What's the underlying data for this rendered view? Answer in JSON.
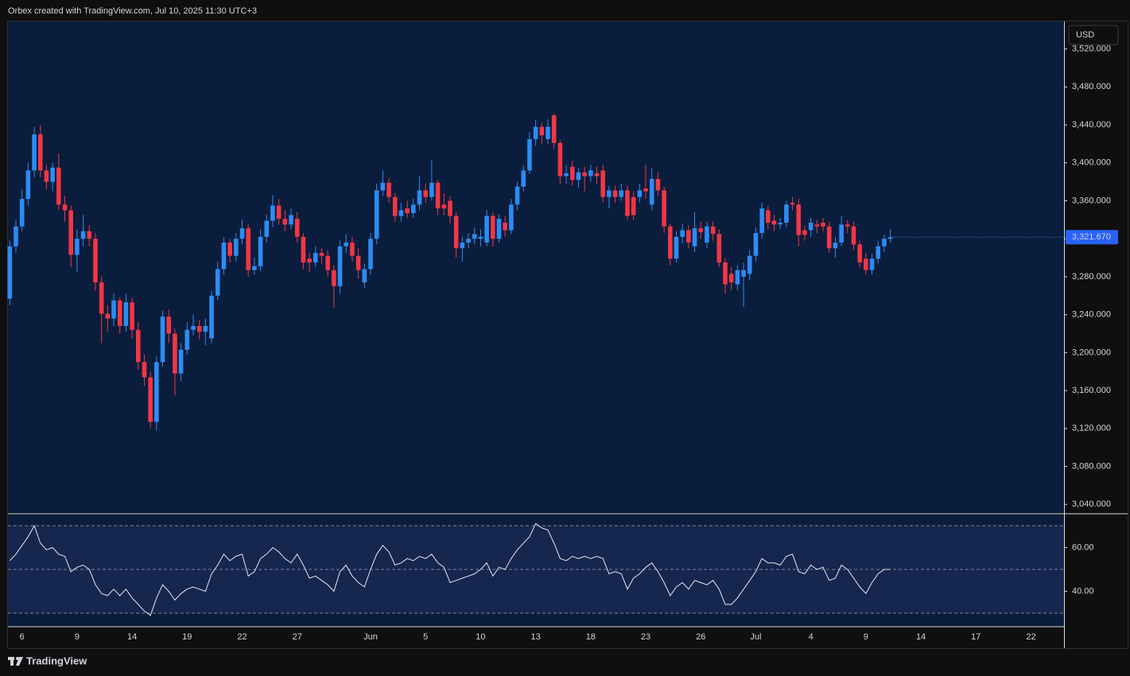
{
  "header": "Orbex created with TradingView.com, Jul 10, 2025 11:30 UTC+3",
  "currency": "USD",
  "footer": "TradingView",
  "chart_data": [
    {
      "type": "candlestick",
      "up_color": "#2c8cf4",
      "down_color": "#f23645",
      "open": [
        3257,
        3312,
        3333,
        3362,
        3392,
        3430,
        3392,
        3380,
        3395,
        3356,
        3350,
        3303,
        3320,
        3328,
        3320,
        3274,
        3241,
        3236,
        3255,
        3228,
        3253,
        3224,
        3190,
        3174,
        3127,
        3190,
        3238,
        3220,
        3178,
        3203,
        3224,
        3228,
        3222,
        3215,
        3260,
        3288,
        3316,
        3302,
        3320,
        3331,
        3287,
        3291,
        3322,
        3339,
        3355,
        3341,
        3335,
        3341,
        3322,
        3299,
        3295,
        3305,
        3302,
        3287,
        3270,
        3312,
        3316,
        3302,
        3274,
        3288,
        3320,
        3371,
        3379,
        3364,
        3344,
        3352,
        3347,
        3356,
        3371,
        3364,
        3379,
        3356,
        3360,
        3344,
        3310,
        3316,
        3320,
        3320,
        3316,
        3344,
        3320,
        3337,
        3329,
        3356,
        3375,
        3392,
        3425,
        3438,
        3425,
        3450,
        3421,
        3386,
        3396,
        3382,
        3390,
        3386,
        3389,
        3392,
        3364,
        3371,
        3364,
        3371,
        3364,
        3364,
        3373,
        3356,
        3383,
        3371,
        3333,
        3299,
        3322,
        3329,
        3312,
        3331,
        3316,
        3333,
        3325,
        3295,
        3283,
        3272,
        3280,
        3283,
        3302,
        3326,
        3350,
        3339,
        3335,
        3337,
        3358,
        3356,
        3329,
        3329,
        3335,
        3337,
        3333,
        3310,
        3316,
        3335,
        3333,
        3314,
        3299,
        3287,
        3299,
        3312,
        3320
      ],
      "high": [
        3318,
        3340,
        3372,
        3400,
        3438,
        3440,
        3398,
        3400,
        3410,
        3365,
        3355,
        3330,
        3345,
        3334,
        3326,
        3280,
        3250,
        3262,
        3258,
        3262,
        3258,
        3232,
        3198,
        3180,
        3196,
        3244,
        3245,
        3225,
        3210,
        3232,
        3240,
        3234,
        3236,
        3265,
        3296,
        3322,
        3320,
        3326,
        3340,
        3335,
        3300,
        3330,
        3345,
        3366,
        3362,
        3350,
        3352,
        3348,
        3326,
        3305,
        3312,
        3310,
        3308,
        3292,
        3318,
        3325,
        3322,
        3310,
        3294,
        3326,
        3378,
        3392,
        3384,
        3368,
        3358,
        3360,
        3362,
        3386,
        3378,
        3403,
        3382,
        3368,
        3365,
        3348,
        3322,
        3326,
        3332,
        3330,
        3350,
        3348,
        3346,
        3344,
        3362,
        3380,
        3398,
        3432,
        3445,
        3442,
        3446,
        3452,
        3424,
        3398,
        3402,
        3395,
        3396,
        3398,
        3396,
        3398,
        3376,
        3376,
        3378,
        3376,
        3370,
        3378,
        3398,
        3394,
        3390,
        3375,
        3336,
        3328,
        3336,
        3334,
        3348,
        3338,
        3338,
        3338,
        3330,
        3300,
        3290,
        3292,
        3295,
        3308,
        3332,
        3358,
        3355,
        3345,
        3342,
        3360,
        3364,
        3362,
        3334,
        3342,
        3340,
        3342,
        3338,
        3322,
        3344,
        3340,
        3338,
        3318,
        3305,
        3304,
        3318,
        3324,
        3330
      ],
      "low": [
        3250,
        3305,
        3328,
        3355,
        3385,
        3385,
        3372,
        3370,
        3350,
        3338,
        3290,
        3285,
        3312,
        3312,
        3265,
        3210,
        3222,
        3228,
        3220,
        3222,
        3215,
        3182,
        3165,
        3120,
        3118,
        3185,
        3210,
        3155,
        3170,
        3198,
        3218,
        3214,
        3208,
        3210,
        3255,
        3282,
        3295,
        3296,
        3314,
        3280,
        3282,
        3286,
        3316,
        3332,
        3335,
        3328,
        3330,
        3316,
        3288,
        3285,
        3290,
        3294,
        3280,
        3247,
        3262,
        3305,
        3296,
        3278,
        3268,
        3282,
        3314,
        3365,
        3358,
        3338,
        3338,
        3342,
        3342,
        3350,
        3358,
        3360,
        3345,
        3345,
        3336,
        3300,
        3296,
        3310,
        3314,
        3312,
        3312,
        3312,
        3316,
        3322,
        3325,
        3350,
        3370,
        3388,
        3418,
        3420,
        3420,
        3415,
        3378,
        3378,
        3376,
        3374,
        3370,
        3380,
        3378,
        3358,
        3352,
        3358,
        3360,
        3340,
        3340,
        3358,
        3362,
        3350,
        3365,
        3326,
        3292,
        3295,
        3315,
        3310,
        3306,
        3320,
        3310,
        3318,
        3290,
        3262,
        3266,
        3266,
        3248,
        3276,
        3296,
        3320,
        3330,
        3328,
        3330,
        3332,
        3350,
        3312,
        3318,
        3322,
        3326,
        3328,
        3305,
        3300,
        3312,
        3326,
        3308,
        3290,
        3282,
        3282,
        3294,
        3306,
        3316
      ],
      "close": [
        3312,
        3333,
        3362,
        3392,
        3430,
        3392,
        3380,
        3395,
        3356,
        3350,
        3303,
        3320,
        3328,
        3320,
        3274,
        3241,
        3236,
        3255,
        3228,
        3253,
        3224,
        3190,
        3174,
        3127,
        3190,
        3238,
        3220,
        3178,
        3203,
        3224,
        3228,
        3222,
        3228,
        3260,
        3288,
        3316,
        3302,
        3320,
        3331,
        3287,
        3291,
        3322,
        3339,
        3355,
        3341,
        3335,
        3345,
        3322,
        3295,
        3295,
        3305,
        3302,
        3287,
        3270,
        3312,
        3316,
        3302,
        3287,
        3288,
        3320,
        3371,
        3379,
        3364,
        3344,
        3350,
        3347,
        3356,
        3371,
        3364,
        3379,
        3352,
        3352,
        3344,
        3310,
        3316,
        3320,
        3325,
        3322,
        3344,
        3320,
        3341,
        3329,
        3356,
        3375,
        3392,
        3425,
        3438,
        3429,
        3438,
        3421,
        3386,
        3389,
        3382,
        3390,
        3386,
        3392,
        3386,
        3364,
        3371,
        3364,
        3371,
        3344,
        3345,
        3371,
        3370,
        3383,
        3371,
        3333,
        3299,
        3322,
        3329,
        3316,
        3331,
        3327,
        3333,
        3325,
        3295,
        3272,
        3274,
        3287,
        3287,
        3302,
        3326,
        3352,
        3337,
        3335,
        3337,
        3356,
        3356,
        3324,
        3324,
        3337,
        3333,
        3333,
        3310,
        3316,
        3335,
        3333,
        3314,
        3295,
        3287,
        3299,
        3312,
        3320,
        3321.67
      ],
      "last_price": {
        "value": 3321.67,
        "label": "3,321.670"
      },
      "xlim": [
        -0.3,
        172.4
      ],
      "xticks": [
        {
          "value": 2,
          "label": "6"
        },
        {
          "value": 11,
          "label": "9"
        },
        {
          "value": 20,
          "label": "14"
        },
        {
          "value": 29,
          "label": "19"
        },
        {
          "value": 38,
          "label": "22"
        },
        {
          "value": 47,
          "label": "27"
        },
        {
          "value": 59,
          "label": "Jun"
        },
        {
          "value": 68,
          "label": "5"
        },
        {
          "value": 77,
          "label": "10"
        },
        {
          "value": 86,
          "label": "13"
        },
        {
          "value": 95,
          "label": "18"
        },
        {
          "value": 104,
          "label": "23"
        },
        {
          "value": 113,
          "label": "26"
        },
        {
          "value": 122,
          "label": "Jul"
        },
        {
          "value": 131,
          "label": "4"
        },
        {
          "value": 140,
          "label": "9"
        },
        {
          "value": 149,
          "label": "14"
        },
        {
          "value": 158,
          "label": "17"
        },
        {
          "value": 167,
          "label": "22"
        }
      ],
      "ylim": [
        3031,
        3549
      ],
      "yticks": [
        {
          "value": 3040,
          "label": "3,040.000"
        },
        {
          "value": 3080,
          "label": "3,080.000"
        },
        {
          "value": 3120,
          "label": "3,120.000"
        },
        {
          "value": 3160,
          "label": "3,160.000"
        },
        {
          "value": 3200,
          "label": "3,200.000"
        },
        {
          "value": 3240,
          "label": "3,240.000"
        },
        {
          "value": 3280,
          "label": "3,280.000"
        },
        {
          "value": 3320,
          "label": "3,320.000"
        },
        {
          "value": 3360,
          "label": "3,360.000"
        },
        {
          "value": 3400,
          "label": "3,400.000"
        },
        {
          "value": 3440,
          "label": "3,440.000"
        },
        {
          "value": 3480,
          "label": "3,480.000"
        },
        {
          "value": 3520,
          "label": "3,520.000"
        }
      ]
    },
    {
      "type": "line",
      "color": "#e6e8ee",
      "values": [
        54,
        57,
        61,
        65,
        70,
        62,
        59,
        60,
        57,
        56,
        49,
        51,
        52,
        50,
        43,
        39,
        38,
        41,
        38,
        41,
        37,
        34,
        31,
        29,
        37,
        43,
        40,
        36,
        39,
        41,
        42,
        41,
        40,
        48,
        52,
        57,
        54,
        56,
        57,
        47,
        49,
        55,
        57,
        60,
        58,
        55,
        53,
        57,
        52,
        46,
        47,
        45,
        43,
        40,
        49,
        52,
        47,
        44,
        42,
        50,
        57,
        61,
        58,
        52,
        53,
        55,
        54,
        56,
        55,
        57,
        53,
        51,
        44,
        45,
        46,
        47,
        48,
        50,
        53,
        47,
        51,
        50,
        55,
        59,
        62,
        65,
        71,
        69,
        68,
        62,
        55,
        54,
        56,
        55,
        56,
        55,
        56,
        55,
        48,
        49,
        48,
        41,
        46,
        48,
        51,
        53,
        49,
        44,
        38,
        42,
        44,
        41,
        45,
        44,
        43,
        45,
        41,
        34,
        34,
        37,
        41,
        45,
        49,
        55,
        53,
        53,
        52,
        56,
        57,
        49,
        48,
        52,
        50,
        51,
        45,
        46,
        52,
        50,
        46,
        42,
        39,
        44,
        48,
        50,
        50
      ],
      "levels": [
        70,
        50,
        30
      ],
      "ylim": [
        24.2,
        75.1
      ],
      "yticks": [
        {
          "value": 60,
          "label": "60.00"
        },
        {
          "value": 40,
          "label": "40.00"
        }
      ]
    }
  ]
}
